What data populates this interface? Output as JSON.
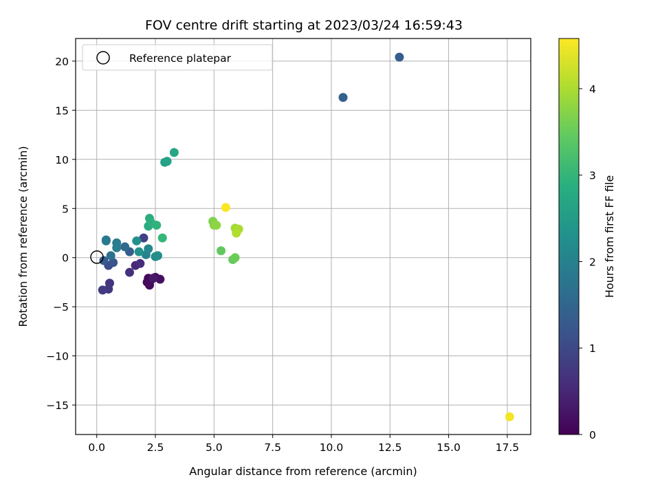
{
  "chart_data": {
    "type": "scatter",
    "title": "FOV centre drift starting at 2023/03/24 16:59:43",
    "xlabel": "Angular distance from reference (arcmin)",
    "ylabel": "Rotation from reference (arcmin)",
    "xlim": [
      -0.9,
      18.5
    ],
    "ylim": [
      -18,
      22.3
    ],
    "xticks": [
      0.0,
      2.5,
      5.0,
      7.5,
      10.0,
      12.5,
      15.0,
      17.5
    ],
    "xtick_labels": [
      "0.0",
      "2.5",
      "5.0",
      "7.5",
      "10.0",
      "12.5",
      "15.0",
      "17.5"
    ],
    "yticks": [
      -15,
      -10,
      -5,
      0,
      5,
      10,
      15,
      20
    ],
    "ytick_labels": [
      "−15",
      "−10",
      "−5",
      "0",
      "5",
      "10",
      "15",
      "20"
    ],
    "grid": true,
    "legend": {
      "position": "top-left",
      "label": "Reference platepar",
      "marker": "open-circle"
    },
    "reference_point": {
      "x": 0,
      "y": 0
    },
    "colorbar": {
      "label": "Hours from first FF file",
      "colormap": "viridis",
      "range": [
        0,
        4.58
      ],
      "ticks": [
        0,
        1,
        2,
        3,
        4
      ],
      "tick_labels": [
        "0",
        "1",
        "2",
        "3",
        "4"
      ]
    },
    "points": [
      {
        "x": 2.2,
        "y": -2.1,
        "c": 0.05
      },
      {
        "x": 2.3,
        "y": -2.3,
        "c": 0.1
      },
      {
        "x": 2.5,
        "y": -2.0,
        "c": 0.15
      },
      {
        "x": 2.7,
        "y": -2.2,
        "c": 0.2
      },
      {
        "x": 2.15,
        "y": -2.5,
        "c": 0.08
      },
      {
        "x": 2.25,
        "y": -2.8,
        "c": 0.12
      },
      {
        "x": 2.4,
        "y": -2.1,
        "c": 0.3
      },
      {
        "x": 1.65,
        "y": -0.8,
        "c": 0.5
      },
      {
        "x": 1.85,
        "y": -0.6,
        "c": 0.6
      },
      {
        "x": 1.4,
        "y": -1.5,
        "c": 0.65
      },
      {
        "x": 0.55,
        "y": -2.6,
        "c": 0.7
      },
      {
        "x": 0.5,
        "y": -3.2,
        "c": 0.75
      },
      {
        "x": 0.25,
        "y": -3.3,
        "c": 0.8
      },
      {
        "x": 2.0,
        "y": 2.0,
        "c": 0.9
      },
      {
        "x": 0.5,
        "y": -0.8,
        "c": 1.1
      },
      {
        "x": 0.7,
        "y": -0.5,
        "c": 1.2
      },
      {
        "x": 0.3,
        "y": -0.3,
        "c": 1.3
      },
      {
        "x": 1.4,
        "y": 0.6,
        "c": 1.35
      },
      {
        "x": 12.9,
        "y": 20.4,
        "c": 1.35
      },
      {
        "x": 10.5,
        "y": 16.3,
        "c": 1.4
      },
      {
        "x": 1.2,
        "y": 1.1,
        "c": 1.55
      },
      {
        "x": 0.6,
        "y": 0.2,
        "c": 1.7
      },
      {
        "x": 0.4,
        "y": 1.8,
        "c": 1.8
      },
      {
        "x": 0.4,
        "y": 1.7,
        "c": 1.85
      },
      {
        "x": 0.85,
        "y": 1.5,
        "c": 1.9
      },
      {
        "x": 0.85,
        "y": 1.0,
        "c": 1.95
      },
      {
        "x": 2.1,
        "y": 0.3,
        "c": 2.05
      },
      {
        "x": 2.2,
        "y": 0.9,
        "c": 2.1
      },
      {
        "x": 2.5,
        "y": 0.1,
        "c": 2.2
      },
      {
        "x": 2.6,
        "y": 0.2,
        "c": 2.25
      },
      {
        "x": 1.7,
        "y": 1.7,
        "c": 2.3
      },
      {
        "x": 1.8,
        "y": 0.6,
        "c": 2.35
      },
      {
        "x": 2.9,
        "y": 9.7,
        "c": 2.6
      },
      {
        "x": 3.0,
        "y": 9.8,
        "c": 2.65
      },
      {
        "x": 3.3,
        "y": 10.7,
        "c": 2.7
      },
      {
        "x": 2.2,
        "y": 3.2,
        "c": 2.8
      },
      {
        "x": 2.25,
        "y": 4.0,
        "c": 2.85
      },
      {
        "x": 2.3,
        "y": 3.6,
        "c": 2.9
      },
      {
        "x": 2.55,
        "y": 3.3,
        "c": 2.95
      },
      {
        "x": 2.8,
        "y": 2.0,
        "c": 3.05
      },
      {
        "x": 5.3,
        "y": 0.7,
        "c": 3.45
      },
      {
        "x": 5.8,
        "y": -0.2,
        "c": 3.5
      },
      {
        "x": 5.9,
        "y": 0.0,
        "c": 3.55
      },
      {
        "x": 4.95,
        "y": 3.7,
        "c": 3.7
      },
      {
        "x": 5.0,
        "y": 3.3,
        "c": 3.75
      },
      {
        "x": 5.1,
        "y": 3.3,
        "c": 3.8
      },
      {
        "x": 5.9,
        "y": 3.0,
        "c": 3.95
      },
      {
        "x": 6.05,
        "y": 2.9,
        "c": 4.0
      },
      {
        "x": 5.95,
        "y": 2.5,
        "c": 4.05
      },
      {
        "x": 5.5,
        "y": 5.1,
        "c": 4.55
      },
      {
        "x": 17.6,
        "y": -16.2,
        "c": 4.5
      }
    ]
  }
}
